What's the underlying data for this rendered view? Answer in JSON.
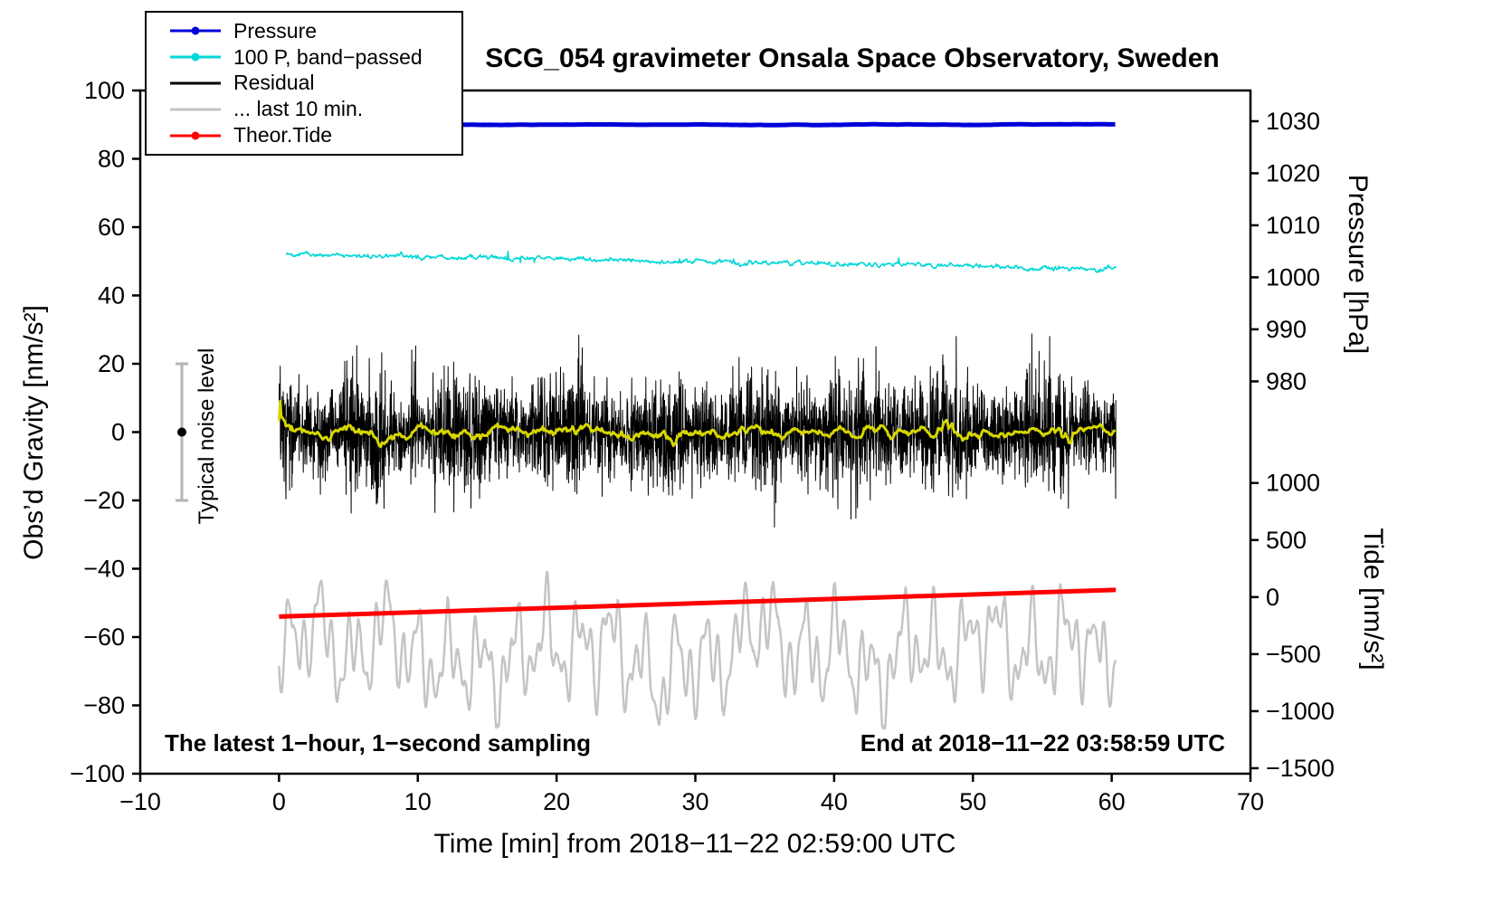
{
  "chart_data": {
    "type": "line",
    "grid": false,
    "title": "SCG_054 gravimeter Onsala Space Observatory, Sweden",
    "xlabel": "Time [min] from 2018−11−22 02:59:00 UTC",
    "ylabel_left": "Obs’d Gravity [nm/s²]",
    "ylabel_pressure": "Pressure [hPa]",
    "ylabel_tide": "Tide [nm/s²]",
    "annotation_left": "The latest 1−hour, 1−second sampling",
    "annotation_right": "End at 2018−11−22 03:58:59 UTC",
    "noise_label": "Typical noise level",
    "xlim": [
      -10,
      70
    ],
    "ylim_left": [
      -100,
      100
    ],
    "xticks": [
      -10,
      0,
      10,
      20,
      30,
      40,
      50,
      60,
      70
    ],
    "yticks_left": [
      -100,
      -80,
      -60,
      -40,
      -20,
      0,
      20,
      40,
      60,
      80,
      100
    ],
    "pressure_axis": {
      "ticks": [
        1030,
        1020,
        1010,
        1000,
        990,
        980
      ],
      "grav_of_1030": 91,
      "grav_per_hpa": 1.523
    },
    "tide_axis": {
      "ticks": [
        1000,
        500,
        0,
        -500,
        -1000,
        -1500
      ],
      "grav_of_zero": -48.3,
      "grav_per_unit": 0.0334
    },
    "legend": [
      {
        "label": "Pressure",
        "color": "#0000d9",
        "marker": "dot"
      },
      {
        "label": "100 P, band−passed",
        "color": "#00d7d7",
        "marker": "dot"
      },
      {
        "label": "Residual",
        "color": "#000000",
        "marker": "line"
      },
      {
        "label": "... last 10 min.",
        "color": "#c4c4c4",
        "marker": "line"
      },
      {
        "label": "Theor.Tide",
        "color": "#ff0000",
        "marker": "dot"
      }
    ],
    "noise_marker": {
      "x": -7,
      "center": 0,
      "half_range": 20,
      "bar_color": "#b5b5b5",
      "dot_color": "#000000"
    },
    "series": [
      {
        "name": "pressure",
        "color": "#0000d9",
        "width": 5,
        "kind": "flat",
        "x_range": [
          0,
          60.3
        ],
        "value": 90,
        "value_hpa": 1028.6,
        "noise": 0.08
      },
      {
        "name": "band_passed",
        "color": "#00d7d7",
        "width": 1.6,
        "kind": "trend_noise",
        "x_range": [
          0.5,
          60.3
        ],
        "start": 52,
        "end": 47.8,
        "noise": 0.45
      },
      {
        "name": "residual",
        "color": "#000000",
        "width": 1,
        "kind": "noise_band",
        "x_range": [
          0,
          60.3
        ],
        "center": 0,
        "sigma": 7.5,
        "spike": 28,
        "sampling_sec": 1
      },
      {
        "name": "residual_smooth",
        "color": "#d6d600",
        "width": 3,
        "kind": "smooth_of_noise",
        "x_range": [
          0,
          60.3
        ],
        "center": 0,
        "window": 45
      },
      {
        "name": "last_10_min",
        "color": "#c4c4c4",
        "width": 2.5,
        "kind": "oscillation",
        "x_range": [
          0,
          60.3
        ],
        "center": -65,
        "amplitude": 14,
        "range": [
          -87,
          -37
        ],
        "center_tide": -500,
        "amplitude_tide": 420
      },
      {
        "name": "theor_tide",
        "color": "#ff0000",
        "width": 5,
        "kind": "trend",
        "x_range": [
          0,
          60.3
        ],
        "start": -54,
        "end": -46.2,
        "tide_start": -170,
        "tide_end": 70
      }
    ]
  }
}
